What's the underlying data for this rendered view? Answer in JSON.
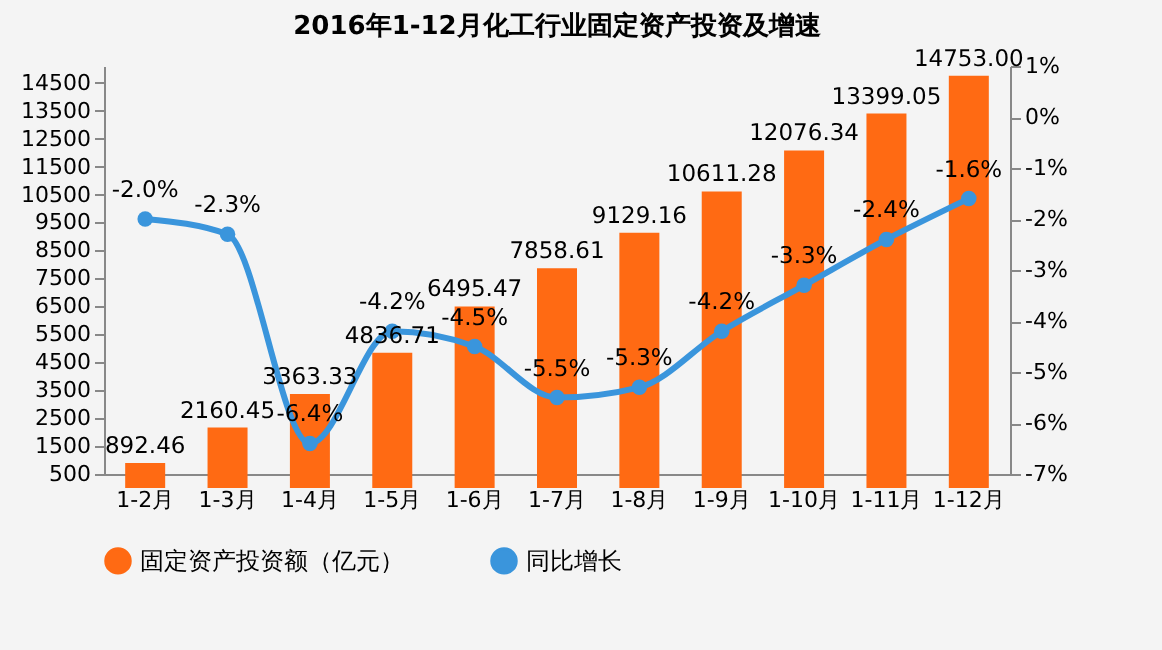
{
  "chart_data": {
    "type": "bar",
    "title": "2016年1-12月化工行业固定资产投资及增速",
    "categories": [
      "1-2月",
      "1-3月",
      "1-4月",
      "1-5月",
      "1-6月",
      "1-7月",
      "1-8月",
      "1-9月",
      "1-10月",
      "1-11月",
      "1-12月"
    ],
    "series": [
      {
        "name": "固定资产投资额（亿元）",
        "color": "#ff6a13",
        "values": [
          892.46,
          2160.45,
          3363.33,
          4836.71,
          6495.47,
          7858.61,
          9129.16,
          10611.28,
          12076.34,
          13399.05,
          14753.0
        ],
        "value_labels": [
          "892.46",
          "2160.45",
          "3363.33",
          "4836.71",
          "6495.47",
          "7858.61",
          "9129.16",
          "10611.28",
          "12076.34",
          "13399.05",
          "14753.00"
        ]
      },
      {
        "name": "同比增长",
        "type": "line",
        "axis": "y2",
        "color": "#3a95dc",
        "values": [
          -2.0,
          -2.3,
          -6.4,
          -4.2,
          -4.5,
          -5.5,
          -5.3,
          -4.2,
          -3.3,
          -2.4,
          -1.6
        ],
        "value_labels": [
          "-2.0%",
          "-2.3%",
          "-6.4%",
          "-4.2%",
          "-4.5%",
          "-5.5%",
          "-5.3%",
          "-4.2%",
          "-3.3%",
          "-2.4%",
          "-1.6%"
        ]
      }
    ],
    "ylim": [
      500,
      15100
    ],
    "yticks": [
      500,
      1500,
      2500,
      3500,
      4500,
      5500,
      6500,
      7500,
      8500,
      9500,
      10500,
      11500,
      12500,
      13500,
      14500
    ],
    "y2lim": [
      -7,
      1
    ],
    "y2ticks": [
      {
        "value": 1,
        "label": "1%"
      },
      {
        "value": 0,
        "label": "0%"
      },
      {
        "value": -1,
        "label": "-1%"
      },
      {
        "value": -2,
        "label": "-2%"
      },
      {
        "value": -3,
        "label": "-3%"
      },
      {
        "value": -4,
        "label": "-4%"
      },
      {
        "value": -5,
        "label": "-5%"
      },
      {
        "value": -6,
        "label": "-6%"
      },
      {
        "value": -7,
        "label": "-7%"
      }
    ],
    "grid": false,
    "legend": "bottom",
    "marker": "circle",
    "line_style": "solid"
  }
}
